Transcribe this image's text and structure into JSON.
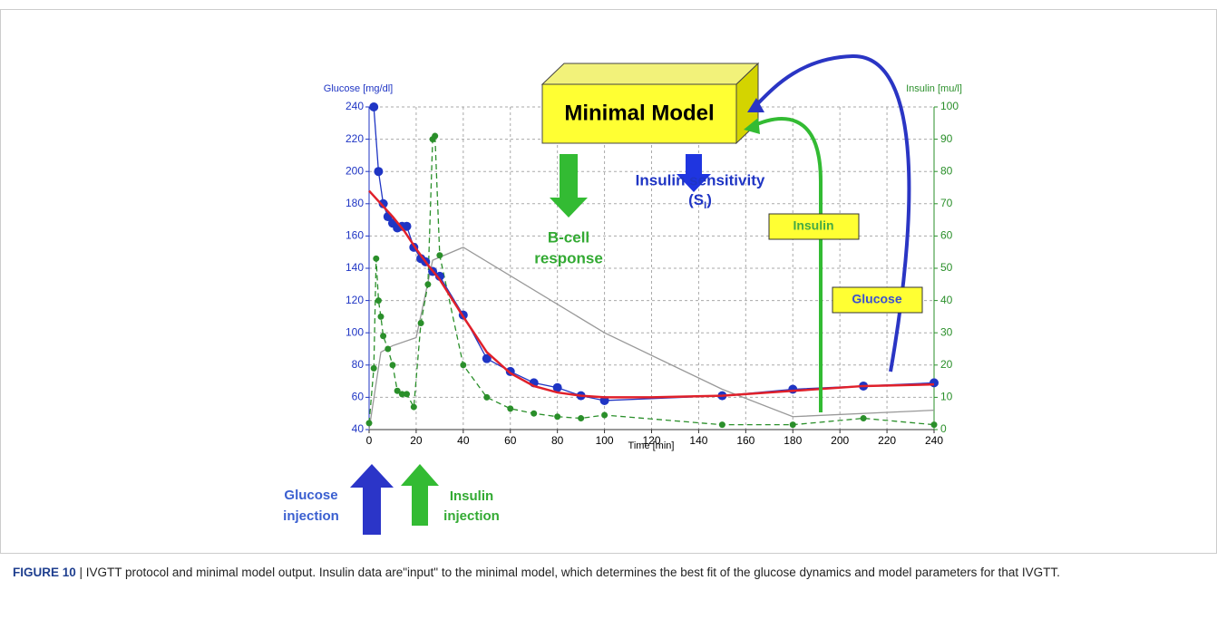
{
  "chart_data": {
    "type": "line",
    "title": "Minimal Model",
    "xlabel": "Time [min]",
    "ylabel": "Glucose [mg/dl]",
    "y2label": "Insulin [mu/l]",
    "xlim": [
      0,
      240
    ],
    "xticks": [
      0,
      20,
      40,
      60,
      80,
      100,
      120,
      140,
      160,
      180,
      200,
      220,
      240
    ],
    "ylim": [
      40,
      240
    ],
    "yticks": [
      40,
      60,
      80,
      100,
      120,
      140,
      160,
      180,
      200,
      220,
      240
    ],
    "y2lim": [
      0,
      100
    ],
    "y2ticks": [
      0,
      10,
      20,
      30,
      40,
      50,
      60,
      70,
      80,
      90,
      100
    ],
    "grid": true,
    "series": [
      {
        "color": "#999999",
        "x": [
          0,
          5,
          10,
          20,
          27,
          40,
          100,
          150,
          180,
          240
        ],
        "values": [
          40,
          88,
          92,
          97,
          145,
          153,
          100,
          65,
          48,
          52
        ]
      },
      {
        "color": "#2a8f2a",
        "axis": "y2",
        "dash": true,
        "marker": "dot",
        "x": [
          0,
          2,
          3,
          4,
          5,
          6,
          8,
          10,
          12,
          14,
          16,
          19,
          22,
          25,
          27,
          28,
          30,
          40,
          50,
          60,
          70,
          80,
          90,
          100,
          150,
          180,
          210,
          240
        ],
        "values": [
          2,
          19,
          53,
          40,
          35,
          29,
          25,
          20,
          12,
          11,
          11,
          7,
          33,
          45,
          90,
          91,
          54,
          20,
          10,
          6.5,
          5,
          4,
          3.5,
          4.5,
          1.5,
          1.5,
          3.5,
          1.5
        ]
      },
      {
        "color": "#1f35c4",
        "marker": "circle",
        "x": [
          2,
          4,
          6,
          8,
          10,
          12,
          14,
          16,
          19,
          22,
          24,
          27,
          30,
          40,
          50,
          60,
          70,
          80,
          90,
          100,
          150,
          180,
          210,
          240
        ],
        "values": [
          240,
          200,
          180,
          172,
          168,
          165,
          166,
          166,
          153,
          146,
          144,
          138,
          135,
          111,
          84,
          76,
          69,
          66,
          61,
          58,
          61,
          65,
          67,
          69
        ]
      },
      {
        "color": "#e0202a",
        "width": 2.5,
        "x": [
          0,
          5,
          10,
          15,
          20,
          25,
          30,
          40,
          50,
          60,
          70,
          80,
          90,
          100,
          120,
          150,
          180,
          210,
          240
        ],
        "values": [
          188,
          180,
          172,
          163,
          152,
          142,
          133,
          110,
          88,
          75,
          67,
          63,
          61,
          60,
          60,
          61,
          64,
          67,
          68
        ]
      }
    ],
    "annotations": {
      "bcell": [
        "B-cell",
        "response"
      ],
      "sensitivity": "Insulin sensitivity",
      "si": {
        "open": "(S",
        "sub": "I",
        "close": ")"
      },
      "insulin_box": "Insulin",
      "glucose_box": "Glucose",
      "glucose_injection": [
        "Glucose",
        "injection"
      ],
      "insulin_injection": [
        "Insulin",
        "injection"
      ]
    }
  },
  "caption": {
    "label": "FIGURE 10",
    "text": " | IVGTT protocol and minimal model output. Insulin data are\"input\" to the minimal model, which determines the best fit of the glucose dynamics and model parameters for that IVGTT."
  }
}
